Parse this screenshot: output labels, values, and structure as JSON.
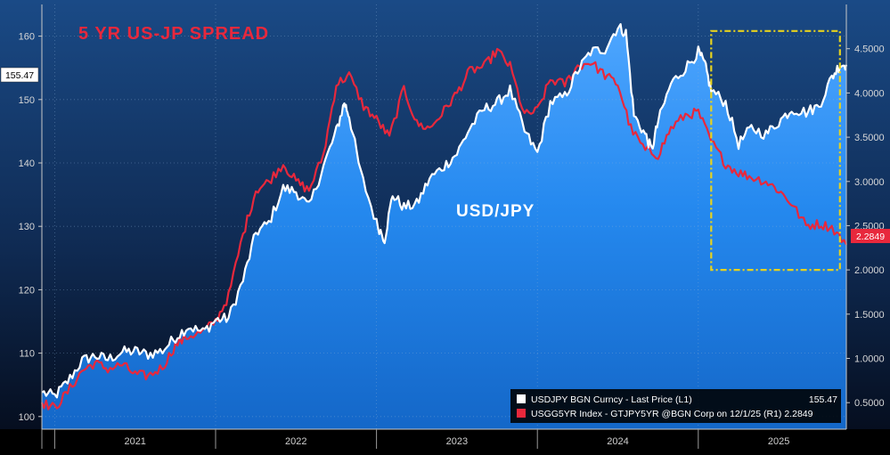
{
  "chart_data": {
    "type": "line",
    "title": "5 YR US-JP SPREAD",
    "annotation": "USD/JPY",
    "x_categories": [
      "2021",
      "2022",
      "2023",
      "2024",
      "2025"
    ],
    "x_range": [
      2020.92,
      2025.92
    ],
    "left_axis": {
      "label": "L1",
      "ylim": [
        98,
        165
      ],
      "ticks": [
        100,
        110,
        120,
        130,
        140,
        150,
        160
      ],
      "tick_labels": [
        "100",
        "110",
        "120",
        "130",
        "140",
        "150",
        "160"
      ]
    },
    "right_axis": {
      "label": "R1",
      "ylim": [
        0.2,
        5.0
      ],
      "ticks": [
        0.5,
        1.0,
        1.5,
        2.0,
        2.5,
        3.0,
        3.5,
        4.0,
        4.5
      ],
      "tick_labels": [
        "0.5000",
        "1.0000",
        "1.5000",
        "2.0000",
        "2.5000",
        "3.0000",
        "3.5000",
        "4.0000",
        "4.5000"
      ]
    },
    "highlight_box": {
      "x_range": [
        2025.08,
        2025.88
      ],
      "y_right_range": [
        2.0,
        4.7
      ],
      "color": "#e6d21e"
    },
    "series": [
      {
        "name": "USDJPY BGN Curncy - Last Price (L1)",
        "axis": "left",
        "color": "#ffffff",
        "last_value": "155.47",
        "points": [
          [
            2020.92,
            103.8
          ],
          [
            2021.0,
            103.2
          ],
          [
            2021.08,
            105.5
          ],
          [
            2021.17,
            108.8
          ],
          [
            2021.25,
            109.6
          ],
          [
            2021.33,
            109.0
          ],
          [
            2021.42,
            110.2
          ],
          [
            2021.5,
            110.3
          ],
          [
            2021.58,
            109.8
          ],
          [
            2021.67,
            110.4
          ],
          [
            2021.75,
            112.5
          ],
          [
            2021.83,
            114.2
          ],
          [
            2021.92,
            113.3
          ],
          [
            2022.0,
            115.2
          ],
          [
            2022.08,
            115.5
          ],
          [
            2022.17,
            121.5
          ],
          [
            2022.25,
            129.0
          ],
          [
            2022.33,
            130.5
          ],
          [
            2022.42,
            136.0
          ],
          [
            2022.5,
            135.5
          ],
          [
            2022.58,
            133.0
          ],
          [
            2022.67,
            139.5
          ],
          [
            2022.75,
            145.0
          ],
          [
            2022.8,
            149.5
          ],
          [
            2022.83,
            147.5
          ],
          [
            2022.9,
            138.5
          ],
          [
            2023.0,
            130.5
          ],
          [
            2023.05,
            128.0
          ],
          [
            2023.1,
            135.0
          ],
          [
            2023.17,
            133.0
          ],
          [
            2023.25,
            133.5
          ],
          [
            2023.33,
            137.5
          ],
          [
            2023.42,
            139.5
          ],
          [
            2023.5,
            141.5
          ],
          [
            2023.58,
            145.5
          ],
          [
            2023.67,
            148.5
          ],
          [
            2023.75,
            149.5
          ],
          [
            2023.83,
            151.5
          ],
          [
            2023.92,
            145.0
          ],
          [
            2024.0,
            141.5
          ],
          [
            2024.08,
            149.5
          ],
          [
            2024.17,
            150.5
          ],
          [
            2024.25,
            154.5
          ],
          [
            2024.33,
            157.5
          ],
          [
            2024.42,
            158.0
          ],
          [
            2024.5,
            161.5
          ],
          [
            2024.55,
            160.5
          ],
          [
            2024.6,
            147.5
          ],
          [
            2024.67,
            144.5
          ],
          [
            2024.71,
            142.0
          ],
          [
            2024.75,
            146.5
          ],
          [
            2024.83,
            152.5
          ],
          [
            2024.92,
            155.0
          ],
          [
            2025.0,
            157.5
          ],
          [
            2025.04,
            155.5
          ],
          [
            2025.08,
            151.5
          ],
          [
            2025.17,
            149.5
          ],
          [
            2025.25,
            143.0
          ],
          [
            2025.33,
            145.5
          ],
          [
            2025.42,
            144.5
          ],
          [
            2025.5,
            146.5
          ],
          [
            2025.58,
            148.5
          ],
          [
            2025.67,
            148.0
          ],
          [
            2025.75,
            149.0
          ],
          [
            2025.83,
            153.5
          ],
          [
            2025.88,
            155.5
          ],
          [
            2025.92,
            155.47
          ]
        ]
      },
      {
        "name": "USGG5YR Index - GTJPY5YR @BGN Corp on 12/1/25 (R1) 2.2849",
        "axis": "right",
        "color": "#e8283c",
        "last_value": "2.2849",
        "points": [
          [
            2020.92,
            0.5
          ],
          [
            2021.0,
            0.44
          ],
          [
            2021.08,
            0.62
          ],
          [
            2021.17,
            0.86
          ],
          [
            2021.25,
            0.95
          ],
          [
            2021.33,
            0.88
          ],
          [
            2021.42,
            0.93
          ],
          [
            2021.5,
            0.82
          ],
          [
            2021.58,
            0.8
          ],
          [
            2021.67,
            0.9
          ],
          [
            2021.75,
            1.15
          ],
          [
            2021.83,
            1.25
          ],
          [
            2021.92,
            1.3
          ],
          [
            2022.0,
            1.42
          ],
          [
            2022.08,
            1.7
          ],
          [
            2022.17,
            2.4
          ],
          [
            2022.25,
            2.9
          ],
          [
            2022.33,
            3.0
          ],
          [
            2022.42,
            3.2
          ],
          [
            2022.5,
            3.0
          ],
          [
            2022.58,
            2.9
          ],
          [
            2022.67,
            3.3
          ],
          [
            2022.75,
            4.1
          ],
          [
            2022.83,
            4.2
          ],
          [
            2022.92,
            3.85
          ],
          [
            2023.0,
            3.7
          ],
          [
            2023.08,
            3.5
          ],
          [
            2023.17,
            4.05
          ],
          [
            2023.25,
            3.65
          ],
          [
            2023.33,
            3.6
          ],
          [
            2023.42,
            3.8
          ],
          [
            2023.5,
            4.0
          ],
          [
            2023.58,
            4.25
          ],
          [
            2023.67,
            4.3
          ],
          [
            2023.75,
            4.48
          ],
          [
            2023.83,
            4.3
          ],
          [
            2023.92,
            3.75
          ],
          [
            2024.0,
            3.8
          ],
          [
            2024.08,
            4.15
          ],
          [
            2024.17,
            4.1
          ],
          [
            2024.25,
            4.3
          ],
          [
            2024.33,
            4.35
          ],
          [
            2024.42,
            4.2
          ],
          [
            2024.5,
            4.1
          ],
          [
            2024.58,
            3.6
          ],
          [
            2024.67,
            3.35
          ],
          [
            2024.75,
            3.3
          ],
          [
            2024.83,
            3.6
          ],
          [
            2024.92,
            3.75
          ],
          [
            2025.0,
            3.78
          ],
          [
            2025.08,
            3.45
          ],
          [
            2025.17,
            3.2
          ],
          [
            2025.25,
            3.1
          ],
          [
            2025.33,
            3.05
          ],
          [
            2025.42,
            3.0
          ],
          [
            2025.5,
            2.9
          ],
          [
            2025.58,
            2.75
          ],
          [
            2025.67,
            2.5
          ],
          [
            2025.75,
            2.52
          ],
          [
            2025.83,
            2.48
          ],
          [
            2025.92,
            2.2849
          ]
        ]
      }
    ]
  }
}
